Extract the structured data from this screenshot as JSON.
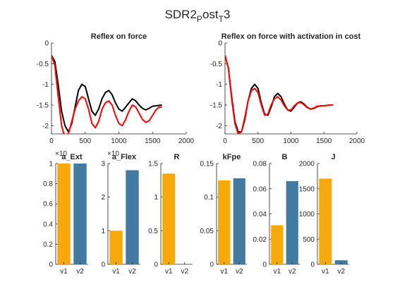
{
  "figure": {
    "suptitle": {
      "base": "SDR2",
      "sub1": "P",
      "mid": "ost",
      "sub2": "T",
      "end": "3"
    }
  },
  "chart_data": [
    {
      "type": "line",
      "title": "Reflex on force",
      "xlim": [
        0,
        2000
      ],
      "ylim": [
        -2.2,
        0
      ],
      "xticks": [
        0,
        500,
        1000,
        1500,
        2000
      ],
      "yticks": [
        -2,
        -1.5,
        -1,
        -0.5,
        0
      ],
      "series": [
        {
          "color": "#000000",
          "x": [
            0,
            50,
            100,
            150,
            200,
            250,
            300,
            350,
            400,
            450,
            500,
            550,
            600,
            650,
            700,
            750,
            800,
            850,
            900,
            950,
            1000,
            1050,
            1100,
            1150,
            1200,
            1250,
            1300,
            1350,
            1400,
            1450,
            1500,
            1550,
            1600,
            1640
          ],
          "y": [
            -0.3,
            -0.45,
            -1.0,
            -1.65,
            -2.0,
            -2.15,
            -1.95,
            -1.55,
            -1.15,
            -1.0,
            -1.05,
            -1.35,
            -1.65,
            -1.75,
            -1.6,
            -1.35,
            -1.2,
            -1.15,
            -1.25,
            -1.45,
            -1.6,
            -1.65,
            -1.55,
            -1.45,
            -1.35,
            -1.4,
            -1.5,
            -1.58,
            -1.62,
            -1.58,
            -1.53,
            -1.52,
            -1.51,
            -1.5
          ]
        },
        {
          "color": "#ff0000",
          "x": [
            0,
            50,
            100,
            150,
            200,
            250,
            300,
            350,
            400,
            450,
            500,
            550,
            600,
            650,
            700,
            750,
            800,
            850,
            900,
            950,
            1000,
            1050,
            1100,
            1150,
            1200,
            1250,
            1300,
            1350,
            1400,
            1450,
            1500,
            1550,
            1600,
            1640
          ],
          "y": [
            -0.3,
            -0.55,
            -1.3,
            -2.0,
            -2.3,
            -2.2,
            -1.9,
            -1.6,
            -1.4,
            -1.3,
            -1.35,
            -1.6,
            -1.95,
            -2.05,
            -1.9,
            -1.6,
            -1.45,
            -1.4,
            -1.5,
            -1.75,
            -1.95,
            -2.0,
            -1.85,
            -1.65,
            -1.5,
            -1.55,
            -1.7,
            -1.85,
            -1.92,
            -1.88,
            -1.75,
            -1.62,
            -1.55,
            -1.55
          ]
        }
      ]
    },
    {
      "type": "line",
      "title": "Reflex on force with activation in cost",
      "xlim": [
        0,
        2000
      ],
      "ylim": [
        -2.2,
        0
      ],
      "xticks": [
        0,
        500,
        1000,
        1500,
        2000
      ],
      "yticks": [
        -2,
        -1.5,
        -1,
        -0.5,
        0
      ],
      "series": [
        {
          "color": "#000000",
          "x": [
            0,
            50,
            100,
            150,
            200,
            250,
            300,
            350,
            400,
            450,
            500,
            550,
            600,
            650,
            700,
            750,
            800,
            850,
            900,
            950,
            1000,
            1050,
            1100,
            1150,
            1200,
            1250,
            1300,
            1350,
            1400,
            1450,
            1500,
            1550,
            1600,
            1640
          ],
          "y": [
            -0.3,
            -0.6,
            -1.3,
            -1.9,
            -2.15,
            -2.15,
            -1.85,
            -1.4,
            -1.1,
            -1.0,
            -1.1,
            -1.45,
            -1.72,
            -1.75,
            -1.55,
            -1.3,
            -1.22,
            -1.3,
            -1.48,
            -1.62,
            -1.65,
            -1.55,
            -1.45,
            -1.42,
            -1.48,
            -1.56,
            -1.6,
            -1.58,
            -1.54,
            -1.52,
            -1.52,
            -1.51,
            -1.5,
            -1.5
          ]
        },
        {
          "color": "#ff0000",
          "x": [
            0,
            50,
            100,
            150,
            200,
            250,
            300,
            350,
            400,
            450,
            500,
            550,
            600,
            650,
            700,
            750,
            800,
            850,
            900,
            950,
            1000,
            1050,
            1100,
            1150,
            1200,
            1250,
            1300,
            1350,
            1400,
            1450,
            1500,
            1550,
            1600,
            1640
          ],
          "y": [
            -0.3,
            -0.6,
            -1.35,
            -1.95,
            -2.2,
            -2.15,
            -1.8,
            -1.4,
            -1.15,
            -1.1,
            -1.2,
            -1.5,
            -1.75,
            -1.72,
            -1.5,
            -1.35,
            -1.3,
            -1.38,
            -1.52,
            -1.62,
            -1.62,
            -1.52,
            -1.45,
            -1.44,
            -1.5,
            -1.57,
            -1.6,
            -1.57,
            -1.53,
            -1.52,
            -1.52,
            -1.51,
            -1.5,
            -1.5
          ]
        }
      ]
    },
    {
      "type": "bar",
      "title": "a_Ext",
      "categories": [
        "v1",
        "v2"
      ],
      "values": [
        1.0,
        1.0
      ],
      "ylim": [
        0,
        1
      ],
      "yticks": [
        0,
        0.2,
        0.4,
        0.6,
        0.8,
        1
      ],
      "exponent": "×10",
      "colors": [
        "#f7a90c",
        "#427aa1"
      ]
    },
    {
      "type": "bar",
      "title": "a_Flex",
      "categories": [
        "v1",
        "v2"
      ],
      "values": [
        1.0,
        2.8
      ],
      "ylim": [
        0,
        3
      ],
      "yticks": [
        0,
        1,
        2,
        3
      ],
      "exponent": "×10",
      "colors": [
        "#f7a90c",
        "#427aa1"
      ]
    },
    {
      "type": "bar",
      "title": "R",
      "categories": [
        "v1",
        "v2"
      ],
      "values": [
        1.35,
        0
      ],
      "ylim": [
        0,
        1.5
      ],
      "yticks": [
        0,
        0.5,
        1,
        1.5
      ],
      "colors": [
        "#f7a90c",
        "#427aa1"
      ]
    },
    {
      "type": "bar",
      "title": "kFpe",
      "categories": [
        "v1",
        "v2"
      ],
      "values": [
        0.125,
        0.128
      ],
      "ylim": [
        0,
        0.15
      ],
      "yticks": [
        0,
        0.05,
        0.1,
        0.15
      ],
      "colors": [
        "#f7a90c",
        "#427aa1"
      ]
    },
    {
      "type": "bar",
      "title": "B",
      "categories": [
        "v1",
        "v2"
      ],
      "values": [
        0.031,
        0.066
      ],
      "ylim": [
        0,
        0.08
      ],
      "yticks": [
        0,
        0.02,
        0.04,
        0.06,
        0.08
      ],
      "colors": [
        "#f7a90c",
        "#427aa1"
      ]
    },
    {
      "type": "bar",
      "title": "J",
      "categories": [
        "v1",
        "v2"
      ],
      "values": [
        1700,
        80
      ],
      "ylim": [
        0,
        2000
      ],
      "yticks": [
        0,
        500,
        1000,
        1500,
        2000
      ],
      "colors": [
        "#f7a90c",
        "#427aa1"
      ]
    }
  ]
}
